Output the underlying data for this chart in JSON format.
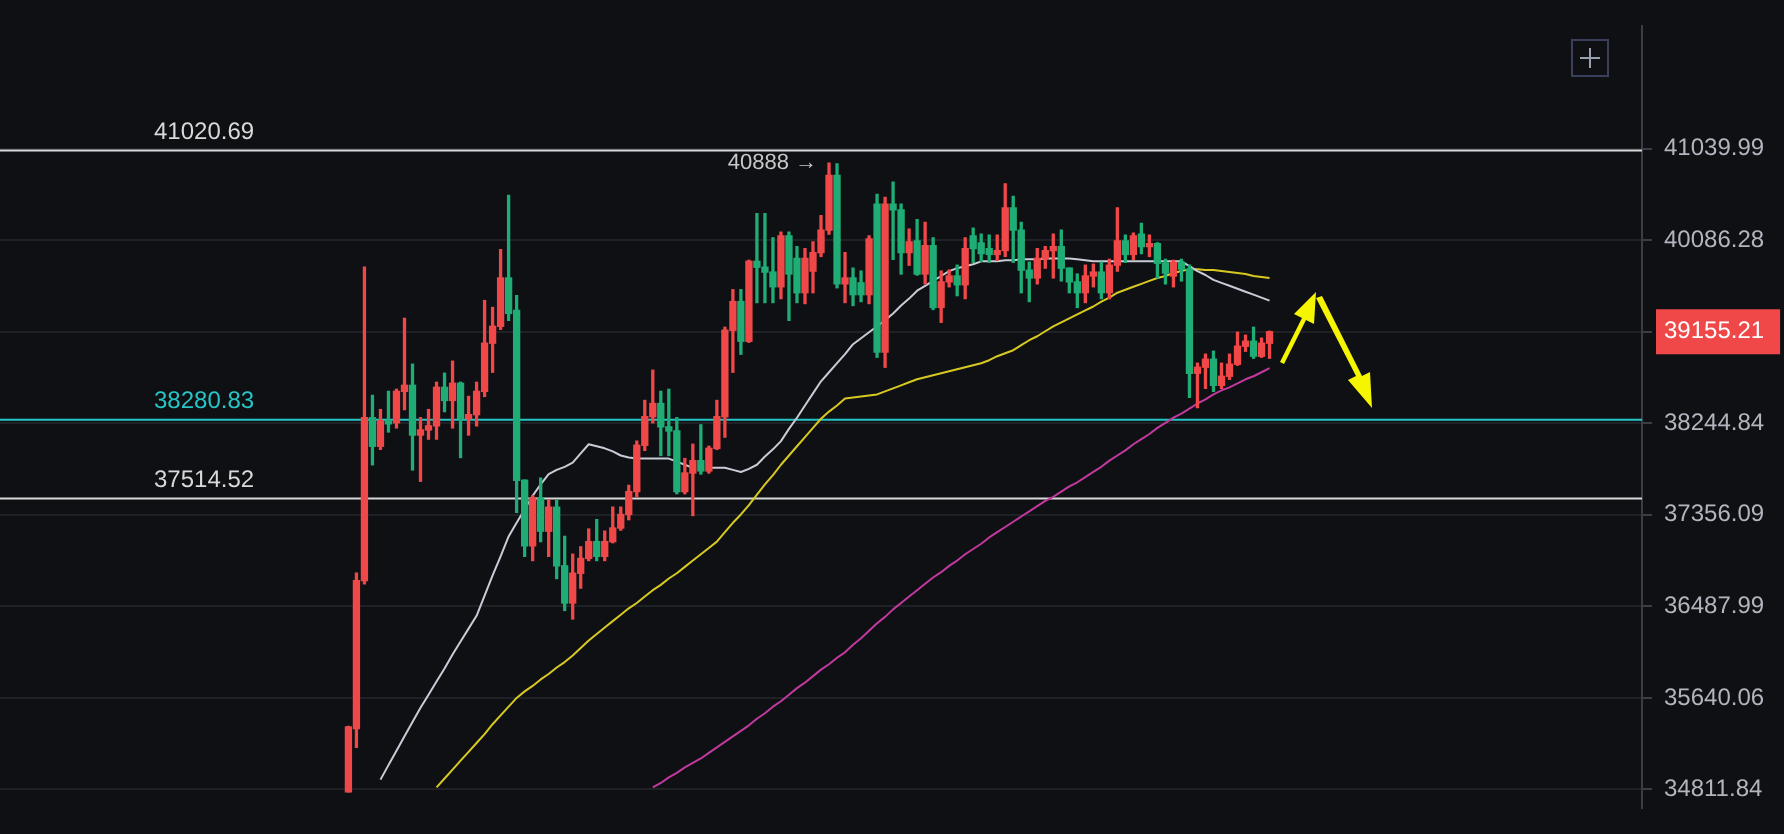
{
  "chart_data": {
    "type": "candlestick",
    "log": true,
    "grid": "y",
    "tick_labels": "y",
    "categories": [
      null,
      null,
      null,
      null,
      null,
      null,
      null,
      null,
      null,
      null,
      null,
      null,
      null,
      null,
      null,
      null,
      null,
      null,
      null,
      null,
      null,
      null,
      null,
      null,
      null,
      null,
      null,
      null,
      null,
      null,
      null,
      null,
      null,
      null,
      null,
      null,
      null,
      null,
      null,
      null,
      null,
      null,
      null,
      null,
      null,
      null,
      null,
      null,
      null,
      null,
      null,
      null,
      null,
      null,
      null,
      null,
      null,
      null,
      null,
      null,
      null,
      null,
      null,
      null,
      null,
      null,
      null,
      null,
      null,
      null,
      null,
      null,
      null,
      null,
      null,
      null,
      null,
      null,
      null,
      null,
      null,
      null,
      null,
      null,
      null,
      null,
      null,
      null,
      null,
      null,
      null,
      null,
      null,
      null,
      null,
      null,
      null,
      null,
      null,
      null,
      null,
      null,
      null,
      null,
      null,
      null,
      null,
      null,
      null,
      null,
      null,
      null,
      null,
      null,
      null,
      null,
      null,
      null,
      null,
      null,
      null,
      null,
      null,
      null,
      null,
      null,
      null,
      null,
      null,
      null,
      null,
      null,
      null,
      null,
      null,
      null,
      null,
      null,
      null,
      null,
      null,
      null,
      null,
      null,
      null,
      null,
      null,
      null,
      null,
      null,
      null,
      null,
      null,
      null,
      null,
      null,
      null,
      null,
      null,
      null,
      null,
      null,
      null,
      null,
      null,
      null,
      null,
      null,
      null,
      null,
      null,
      null,
      null,
      null,
      null,
      null,
      null,
      null,
      null,
      null,
      null,
      null,
      null,
      null,
      null,
      null,
      null,
      null,
      null,
      null,
      null,
      null,
      null,
      null,
      null,
      null,
      null,
      null,
      null,
      null,
      null,
      null,
      null,
      null,
      null
    ],
    "ohlc": [
      null,
      null,
      null,
      null,
      null,
      null,
      null,
      null,
      null,
      null,
      null,
      null,
      null,
      null,
      null,
      null,
      null,
      null,
      null,
      null,
      null,
      null,
      null,
      null,
      null,
      null,
      null,
      null,
      null,
      null,
      null,
      null,
      null,
      null,
      null,
      null,
      null,
      null,
      null,
      null,
      null,
      null,
      null,
      [
        34790,
        35380,
        34790,
        35375
      ],
      [
        35360,
        36800,
        35190,
        36730
      ],
      [
        36730,
        39810,
        36700,
        38300
      ],
      [
        38300,
        38520,
        37840,
        38020
      ],
      [
        38020,
        38380,
        37990,
        38270
      ],
      [
        38270,
        38560,
        38160,
        38240
      ],
      [
        38250,
        38580,
        38200,
        38560
      ],
      [
        38560,
        39290,
        38380,
        38620
      ],
      [
        38620,
        38830,
        37790,
        38130
      ],
      [
        38130,
        38300,
        37680,
        38180
      ],
      [
        38180,
        38380,
        38090,
        38220
      ],
      [
        38220,
        38650,
        38090,
        38600
      ],
      [
        38600,
        38740,
        38360,
        38470
      ],
      [
        38470,
        38860,
        38200,
        38640
      ],
      [
        38640,
        38650,
        37910,
        38290
      ],
      [
        38290,
        38510,
        38130,
        38330
      ],
      [
        38330,
        38650,
        38220,
        38560
      ],
      [
        38560,
        39470,
        38510,
        39040
      ],
      [
        39040,
        39400,
        38750,
        39210
      ],
      [
        39210,
        39990,
        39180,
        39700
      ],
      [
        39700,
        40550,
        39270,
        39340
      ],
      [
        39370,
        39520,
        37380,
        37690
      ],
      [
        37690,
        37690,
        36960,
        37060
      ],
      [
        37060,
        37540,
        36920,
        37520
      ],
      [
        37520,
        37710,
        37100,
        37200
      ],
      [
        37200,
        37500,
        36960,
        37430
      ],
      [
        37430,
        37500,
        36750,
        36870
      ],
      [
        36870,
        37150,
        36450,
        36520
      ],
      [
        36520,
        36980,
        36370,
        36800
      ],
      [
        36800,
        37050,
        36660,
        36940
      ],
      [
        36940,
        37220,
        36920,
        37100
      ],
      [
        37100,
        37310,
        36920,
        36960
      ],
      [
        36960,
        37200,
        36920,
        37100
      ],
      [
        37100,
        37430,
        37090,
        37230
      ],
      [
        37230,
        37430,
        37210,
        37360
      ],
      [
        37360,
        37640,
        37310,
        37580
      ],
      [
        37580,
        38070,
        37530,
        38030
      ],
      [
        38030,
        38470,
        37980,
        38310
      ],
      [
        38310,
        38770,
        38250,
        38440
      ],
      [
        38440,
        38560,
        37930,
        38210
      ],
      [
        38210,
        38580,
        37930,
        38170
      ],
      [
        38170,
        38300,
        37560,
        37580
      ],
      [
        37580,
        37900,
        37560,
        37760
      ],
      [
        37760,
        38040,
        37350,
        37880
      ],
      [
        37880,
        38230,
        37750,
        37780
      ],
      [
        37780,
        38020,
        37760,
        38000
      ],
      [
        38000,
        38470,
        37990,
        38310
      ],
      [
        38310,
        39200,
        38110,
        39170
      ],
      [
        39170,
        39580,
        38750,
        39460
      ],
      [
        39460,
        39580,
        38930,
        39060
      ],
      [
        39060,
        39880,
        39050,
        39870
      ],
      [
        39870,
        40360,
        39450,
        39810
      ],
      [
        39810,
        40360,
        39450,
        39760
      ],
      [
        39760,
        40110,
        39450,
        39610
      ],
      [
        39610,
        40170,
        39490,
        40130
      ],
      [
        40130,
        40170,
        39270,
        39740
      ],
      [
        39900,
        40020,
        39450,
        39550
      ],
      [
        39550,
        40000,
        39440,
        39900
      ],
      [
        39770,
        40070,
        39550,
        39960
      ],
      [
        39960,
        40340,
        39920,
        40190
      ],
      [
        40190,
        40888,
        40150,
        40760
      ],
      [
        40760,
        40880,
        39600,
        39640
      ],
      [
        39640,
        39960,
        39450,
        39700
      ],
      [
        39700,
        39800,
        39420,
        39530
      ],
      [
        39650,
        39770,
        39460,
        39530
      ],
      [
        39530,
        40130,
        39440,
        40100
      ],
      [
        40460,
        40560,
        38900,
        38950
      ],
      [
        38950,
        40530,
        38800,
        40460
      ],
      [
        40460,
        40690,
        39890,
        40400
      ],
      [
        40400,
        40460,
        39740,
        39960
      ],
      [
        39960,
        40200,
        39830,
        40070
      ],
      [
        40080,
        40300,
        39730,
        39740
      ],
      [
        39740,
        40270,
        39640,
        40030
      ],
      [
        40030,
        40110,
        39380,
        39400
      ],
      [
        39400,
        39770,
        39250,
        39660
      ],
      [
        39660,
        39780,
        39610,
        39720
      ],
      [
        39720,
        39830,
        39520,
        39630
      ],
      [
        39630,
        40110,
        39490,
        40000
      ],
      [
        40130,
        40210,
        39860,
        40000
      ],
      [
        40060,
        40150,
        39870,
        39950
      ],
      [
        40000,
        40140,
        39860,
        39940
      ],
      [
        39940,
        40140,
        39880,
        39980
      ],
      [
        39980,
        40670,
        39920,
        40420
      ],
      [
        40420,
        40540,
        39860,
        40190
      ],
      [
        40190,
        40270,
        39550,
        39780
      ],
      [
        39780,
        39860,
        39460,
        39700
      ],
      [
        39700,
        40000,
        39640,
        39900
      ],
      [
        39900,
        40020,
        39800,
        39980
      ],
      [
        39980,
        40150,
        39700,
        40020
      ],
      [
        40020,
        40190,
        39670,
        39800
      ],
      [
        39800,
        39800,
        39550,
        39660
      ],
      [
        39660,
        39740,
        39400,
        39550
      ],
      [
        39550,
        39830,
        39450,
        39720
      ],
      [
        39720,
        39840,
        39610,
        39760
      ],
      [
        39760,
        39860,
        39490,
        39550
      ],
      [
        39550,
        39890,
        39490,
        39830
      ],
      [
        39830,
        40420,
        39770,
        40080
      ],
      [
        40080,
        40140,
        39860,
        39940
      ],
      [
        39940,
        40160,
        39890,
        40130
      ],
      [
        40150,
        40260,
        39950,
        40020
      ],
      [
        40020,
        40140,
        39920,
        40050
      ],
      [
        40050,
        40060,
        39700,
        39850
      ],
      [
        39850,
        39890,
        39640,
        39750
      ],
      [
        39720,
        39880,
        39610,
        39860
      ],
      [
        39860,
        39890,
        39670,
        39790
      ],
      [
        39790,
        39830,
        38500,
        38740
      ],
      [
        38740,
        38840,
        38400,
        38800
      ],
      [
        38800,
        38930,
        38590,
        38880
      ],
      [
        38880,
        38960,
        38560,
        38620
      ],
      [
        38620,
        38840,
        38590,
        38710
      ],
      [
        38710,
        38930,
        38680,
        38830
      ],
      [
        38830,
        39150,
        38820,
        39010
      ],
      [
        39010,
        39120,
        38960,
        39060
      ],
      [
        39060,
        39200,
        38890,
        38910
      ],
      [
        38910,
        39090,
        38900,
        39040
      ],
      [
        39040,
        39160,
        38890,
        39155.21
      ],
      null,
      null,
      null,
      null,
      null,
      null,
      null,
      null,
      null,
      null,
      null,
      null,
      null,
      null,
      null,
      null,
      null,
      null,
      null,
      null,
      null,
      null,
      null,
      null,
      null,
      null,
      null,
      null,
      null,
      null,
      null,
      null,
      null,
      null,
      null,
      null,
      null,
      null,
      null,
      null,
      null,
      null,
      null,
      null,
      null,
      null
    ],
    "colors": [
      null,
      null,
      null,
      null,
      null,
      null,
      null,
      null,
      null,
      null,
      null,
      null,
      null,
      null,
      null,
      null,
      null,
      null,
      null,
      null,
      null,
      null,
      null,
      null,
      null,
      null,
      null,
      null,
      null,
      null,
      null,
      null,
      null,
      null,
      null,
      null,
      null,
      null,
      null,
      null,
      null,
      null,
      null,
      "#f04848",
      "#f04848",
      "#f04848",
      "#1fad75",
      "#f04848",
      "#1fad75",
      "#f04848",
      "#f04848",
      "#1fad75",
      "#f04848",
      "#f04848",
      "#f04848",
      "#1fad75",
      "#f04848",
      "#1fad75",
      "#f04848",
      "#f04848",
      "#f04848",
      "#f04848",
      "#f04848",
      "#1fad75",
      "#1fad75",
      "#1fad75",
      "#f04848",
      "#1fad75",
      "#f04848",
      "#1fad75",
      "#1fad75",
      "#f04848",
      "#f04848",
      "#f04848",
      "#1fad75",
      "#f04848",
      "#f04848",
      "#f04848",
      "#f04848",
      "#f04848",
      "#f04848",
      "#f04848",
      "#1fad75",
      "#1fad75",
      "#1fad75",
      "#f04848",
      "#f04848",
      "#1fad75",
      "#f04848",
      "#f04848",
      "#f04848",
      "#f04848",
      "#1fad75",
      "#f04848",
      "#1fad75",
      "#1fad75",
      "#1fad75",
      "#f04848",
      "#1fad75",
      "#1fad75",
      "#f04848",
      "#f04848",
      "#f04848",
      "#f04848",
      "#1fad75",
      "#f04848",
      "#1fad75",
      "#1fad75",
      "#f04848",
      "#1fad75",
      "#f04848",
      "#1fad75",
      "#1fad75",
      "#f04848",
      "#1fad75",
      "#f04848",
      "#1fad75",
      "#f04848",
      "#f04848",
      "#1fad75",
      "#f04848",
      "#1fad75",
      "#1fad75",
      "#1fad75",
      "#f04848",
      "#f04848",
      "#1fad75",
      "#1fad75",
      "#1fad75",
      "#f04848",
      "#f04848",
      "#f04848",
      "#1fad75",
      "#1fad75",
      "#1fad75",
      "#f04848",
      "#f04848",
      "#1fad75",
      "#f04848",
      "#f04848",
      "#1fad75",
      "#f04848",
      "#1fad75",
      "#f04848",
      "#1fad75",
      "#1fad75",
      "#f04848",
      "#1fad75",
      "#1fad75",
      "#f04848",
      "#f04848",
      "#1fad75",
      "#f04848",
      "#f04848",
      "#f04848",
      "#f04848",
      "#1fad75",
      "#f04848",
      "#f04848",
      null,
      null,
      null,
      null,
      null,
      null,
      null,
      null,
      null,
      null,
      null,
      null,
      null,
      null,
      null,
      null,
      null,
      null,
      null,
      null,
      null,
      null,
      null,
      null,
      null,
      null,
      null,
      null,
      null,
      null,
      null,
      null,
      null,
      null,
      null,
      null,
      null,
      null,
      null,
      null,
      null,
      null,
      null,
      null,
      null,
      null
    ],
    "series": [
      {
        "type": "line",
        "color": "#c9cbd6",
        "values": [
          null,
          null,
          null,
          null,
          null,
          null,
          null,
          null,
          null,
          null,
          null,
          null,
          null,
          null,
          null,
          null,
          null,
          null,
          null,
          null,
          null,
          null,
          null,
          null,
          null,
          null,
          null,
          null,
          null,
          null,
          null,
          null,
          null,
          null,
          null,
          null,
          null,
          null,
          null,
          null,
          null,
          null,
          null,
          null,
          null,
          null,
          null,
          34900,
          35030,
          35160,
          35290,
          35420,
          35550,
          35670,
          35790,
          35910,
          36040,
          36160,
          36280,
          36400,
          36590,
          36780,
          36960,
          37150,
          37280,
          37410,
          37540,
          37650,
          37750,
          37790,
          37820,
          37860,
          37950,
          38040,
          38020,
          38000,
          37970,
          37930,
          37910,
          37900,
          37900,
          37900,
          37900,
          37900,
          37870,
          37840,
          37810,
          null,
          37810,
          37810,
          37810,
          37790,
          37770,
          37800,
          37840,
          37920,
          37990,
          38070,
          38190,
          38300,
          38420,
          38540,
          38660,
          38750,
          38840,
          38930,
          39030,
          39090,
          39150,
          39210,
          39270,
          39340,
          39420,
          39490,
          39570,
          39620,
          39670,
          39720,
          39770,
          39800,
          39820,
          39840,
          39870,
          39870,
          39870,
          39880,
          39880,
          39890,
          39890,
          39890,
          39900,
          39900,
          39900,
          39900,
          39890,
          39880,
          39870,
          39870,
          39870,
          39870,
          39870,
          39870,
          39870,
          39870,
          39870,
          39870,
          39870,
          39870,
          39820,
          39770,
          39730,
          39680,
          39650,
          39620,
          39590,
          39560,
          39530,
          39500,
          39470,
          null,
          null,
          null,
          null,
          null,
          null,
          null,
          null,
          null,
          null,
          null,
          null,
          null,
          null,
          null,
          null,
          null,
          null,
          null,
          null,
          null,
          null,
          null,
          null,
          null,
          null,
          null,
          null,
          null,
          null,
          null,
          null,
          null,
          null,
          null,
          null,
          null,
          null,
          null,
          null,
          null,
          null,
          null,
          null,
          null,
          null
        ]
      },
      {
        "type": "line",
        "color": "#d8c920",
        "values": [
          null,
          null,
          null,
          null,
          null,
          null,
          null,
          null,
          null,
          null,
          null,
          null,
          null,
          null,
          null,
          null,
          null,
          null,
          null,
          null,
          null,
          null,
          null,
          null,
          null,
          null,
          null,
          null,
          null,
          null,
          null,
          null,
          null,
          null,
          null,
          null,
          null,
          null,
          null,
          null,
          null,
          null,
          null,
          null,
          null,
          null,
          null,
          null,
          null,
          null,
          null,
          null,
          null,
          null,
          34830,
          34910,
          34990,
          35070,
          35150,
          35230,
          35310,
          35400,
          35480,
          35560,
          35640,
          35700,
          35750,
          35810,
          35860,
          35920,
          35970,
          36030,
          36100,
          36170,
          36230,
          36290,
          36350,
          36410,
          36470,
          36520,
          36580,
          36640,
          36690,
          36750,
          36800,
          36860,
          36920,
          36980,
          37040,
          37100,
          37190,
          37280,
          37360,
          37450,
          37550,
          37650,
          37740,
          37840,
          37930,
          38020,
          38110,
          38200,
          38290,
          38360,
          38420,
          38490,
          38500,
          38510,
          38520,
          38530,
          38560,
          38590,
          38620,
          38650,
          38680,
          38700,
          38720,
          38740,
          38760,
          38780,
          38800,
          38820,
          38840,
          38870,
          38910,
          38940,
          38970,
          39020,
          39070,
          39110,
          39160,
          39210,
          39250,
          39290,
          39330,
          39370,
          39410,
          39460,
          39500,
          39550,
          39580,
          39610,
          39640,
          39670,
          39700,
          39720,
          39750,
          39770,
          39790,
          39790,
          39780,
          39780,
          39770,
          39760,
          39750,
          39740,
          39720,
          39710,
          39700,
          null,
          null,
          null,
          null,
          null,
          null,
          null,
          null,
          null,
          null,
          null,
          null,
          null,
          null,
          null,
          null,
          null,
          null,
          null,
          null,
          null,
          null,
          null,
          null,
          null,
          null,
          null,
          null,
          null,
          null,
          null,
          null,
          null,
          null,
          null,
          null,
          null,
          null,
          null,
          null,
          null,
          null,
          null,
          null,
          null,
          null
        ]
      },
      {
        "type": "line",
        "color": "#c2399e",
        "values": [
          null,
          null,
          null,
          null,
          null,
          null,
          null,
          null,
          null,
          null,
          null,
          null,
          null,
          null,
          null,
          null,
          null,
          null,
          null,
          null,
          null,
          null,
          null,
          null,
          null,
          null,
          null,
          null,
          null,
          null,
          null,
          null,
          null,
          null,
          null,
          null,
          null,
          null,
          null,
          null,
          null,
          null,
          null,
          null,
          null,
          null,
          null,
          null,
          null,
          null,
          null,
          null,
          null,
          null,
          null,
          null,
          null,
          null,
          null,
          null,
          null,
          null,
          null,
          null,
          null,
          null,
          null,
          null,
          null,
          null,
          null,
          null,
          null,
          null,
          null,
          null,
          null,
          null,
          null,
          null,
          null,
          34830,
          34870,
          34920,
          34960,
          35010,
          35050,
          35090,
          35140,
          35190,
          35240,
          35290,
          35340,
          35390,
          35450,
          35500,
          35560,
          35610,
          35670,
          35730,
          35780,
          35840,
          35900,
          35950,
          36010,
          36060,
          36130,
          36190,
          36260,
          36330,
          36390,
          36460,
          36520,
          36580,
          36640,
          36700,
          36760,
          36810,
          36870,
          36920,
          36980,
          37030,
          37080,
          37140,
          37190,
          37240,
          37290,
          37340,
          37390,
          37440,
          37490,
          37530,
          37580,
          37630,
          37670,
          37720,
          37770,
          37820,
          37880,
          37930,
          37980,
          38040,
          38090,
          38140,
          38200,
          38250,
          38300,
          38340,
          38390,
          38440,
          38480,
          38530,
          38570,
          38600,
          38640,
          38680,
          38710,
          38750,
          38790,
          null,
          null,
          null,
          null,
          null,
          null,
          null,
          null,
          null,
          null,
          null,
          null,
          null,
          null,
          null,
          null,
          null,
          null,
          null,
          null,
          null,
          null,
          null,
          null,
          null,
          null,
          null,
          null,
          null,
          null,
          null,
          null,
          null,
          null,
          null,
          null,
          null,
          null,
          null,
          null,
          null,
          null,
          null,
          null,
          null,
          null
        ]
      }
    ],
    "ylim": [
      34650,
      42350
    ],
    "yticks": [
      34811.84,
      35640.06,
      36487.99,
      37356.09,
      38244.84,
      39155.21,
      40086.28,
      41039.99
    ],
    "ref_lines": [
      {
        "axis": "y",
        "value": 41020.69,
        "label": "41020.69",
        "color": "#d9d9d9"
      },
      {
        "axis": "y",
        "value": 38280.83,
        "label": "38280.83",
        "color": "#26c6c6"
      },
      {
        "axis": "y",
        "value": 37514.52,
        "label": "37514.52",
        "color": "#d9d9d9"
      }
    ],
    "annotations": [
      "40888 →"
    ]
  }
}
